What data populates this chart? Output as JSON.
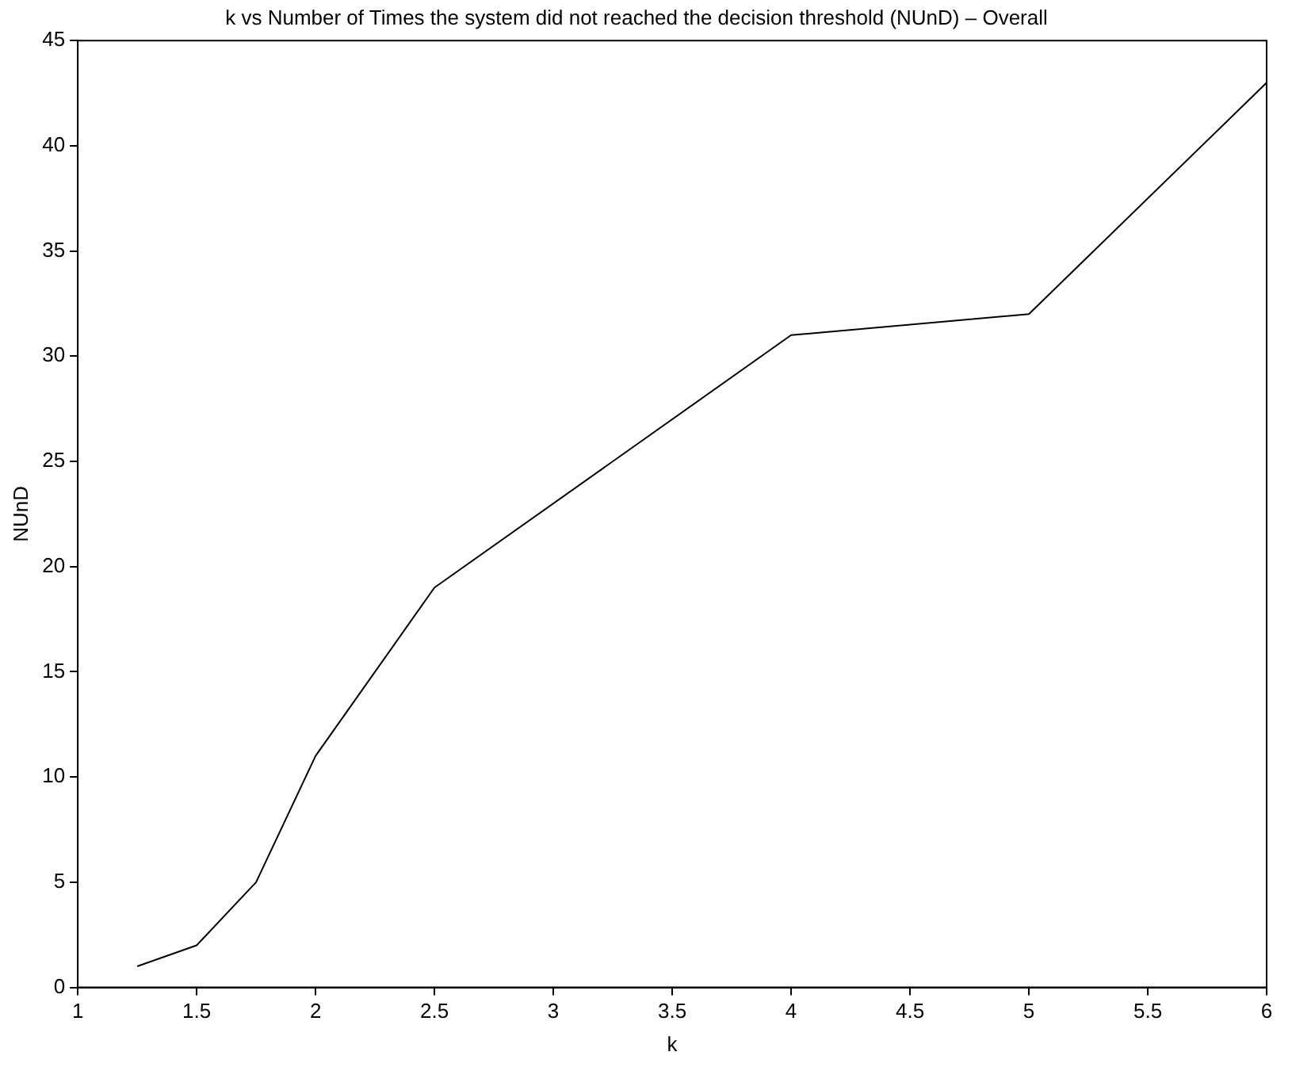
{
  "chart_data": {
    "type": "line",
    "title": "k vs Number of Times the system did not reached the decision threshold (NUnD) – Overall",
    "xlabel": "k",
    "ylabel": "NUnD",
    "x": [
      1.25,
      1.5,
      1.75,
      2,
      2.5,
      4,
      5,
      6
    ],
    "series": [
      {
        "color": "#000000",
        "values": [
          1,
          2,
          5,
          11,
          19,
          31,
          32,
          43
        ]
      }
    ],
    "xlim": [
      1,
      6
    ],
    "xticks": [
      1,
      1.5,
      2,
      2.5,
      3,
      3.5,
      4,
      4.5,
      5,
      5.5,
      6
    ],
    "ylim": [
      0,
      45
    ],
    "yticks": [
      0,
      5,
      10,
      15,
      20,
      25,
      30,
      35,
      40,
      45
    ],
    "grid": false,
    "legend": false,
    "marker": "none",
    "line_style": "solid"
  }
}
